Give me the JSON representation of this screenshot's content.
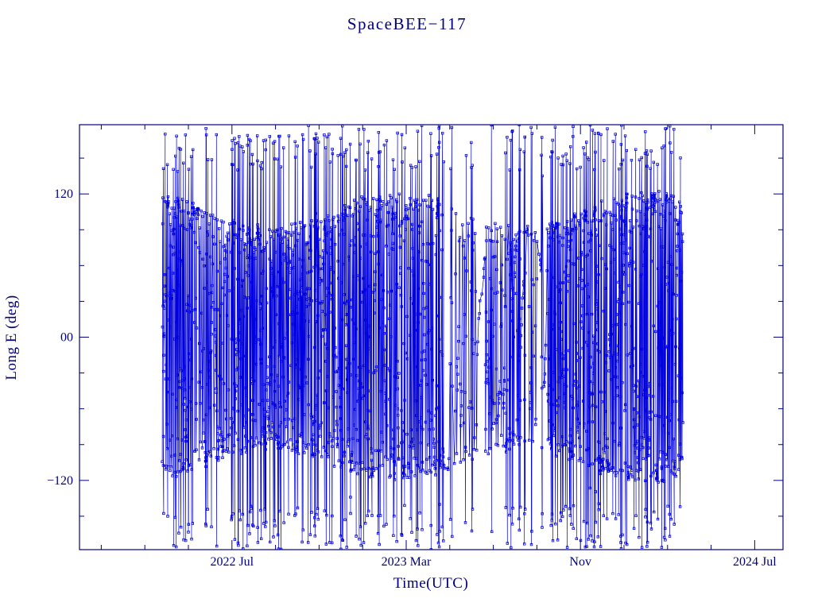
{
  "chart_data": {
    "type": "line",
    "title": "SpaceBEE−117",
    "xlabel": "Time(UTC)",
    "ylabel": "Long E (deg)",
    "background": "#ffffff",
    "axis_color": "#000080",
    "series_color": "#0000e0",
    "x_axis": {
      "unit": "months-since-2021-12",
      "start": 0,
      "end": 32.3,
      "major_ticks": [
        {
          "m": 7,
          "label": "2022 Jul"
        },
        {
          "m": 15,
          "label": "2023 Mar"
        },
        {
          "m": 23,
          "label": "Nov"
        },
        {
          "m": 31,
          "label": "2024 Jul"
        }
      ],
      "minor_ticks": [
        1,
        3,
        5,
        9,
        11,
        13,
        17,
        19,
        21,
        25,
        27,
        29
      ]
    },
    "y_axis": {
      "min": -178,
      "max": 178,
      "major_ticks": [
        {
          "v": 120,
          "label": "120"
        },
        {
          "v": 0,
          "label": "00"
        },
        {
          "v": -120,
          "label": "−120"
        }
      ],
      "minor_ticks": [
        -150,
        -90,
        -60,
        -30,
        30,
        60,
        90,
        150
      ]
    },
    "series": [
      {
        "name": "longitude-track",
        "marker": "open-square",
        "color": "#0000e0",
        "start_month": 3.8,
        "end_month": 27.7,
        "n_samples": 2600,
        "seed": 117,
        "band_amplitude": 104,
        "amplitude_jitter": 14,
        "wrap_prob": 0.085,
        "extreme_prob": 0.02,
        "wrap_extent_min": 140,
        "wrap_extent_max": 178,
        "density_segments": [
          {
            "u0": 0.0,
            "u1": 0.046,
            "d": 1.0
          },
          {
            "u0": 0.046,
            "u1": 0.175,
            "d": 0.85
          },
          {
            "u0": 0.175,
            "u1": 0.4,
            "d": 0.95
          },
          {
            "u0": 0.4,
            "u1": 0.535,
            "d": 0.9
          },
          {
            "u0": 0.535,
            "u1": 0.62,
            "d": 0.35
          },
          {
            "u0": 0.62,
            "u1": 0.69,
            "d": 0.75
          },
          {
            "u0": 0.69,
            "u1": 0.74,
            "d": 0.45
          },
          {
            "u0": 0.74,
            "u1": 1.0,
            "d": 1.0
          }
        ]
      }
    ]
  }
}
